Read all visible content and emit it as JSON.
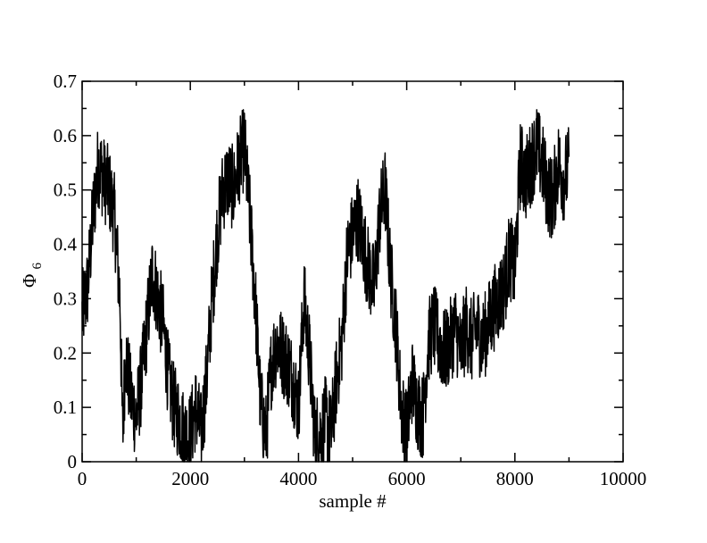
{
  "chart_data": {
    "type": "line",
    "title": "",
    "xlabel": "sample #",
    "ylabel": "Φ",
    "ylabel_subscript": "6",
    "xlim": [
      0,
      10000
    ],
    "ylim": [
      0,
      0.7
    ],
    "x_ticks": [
      0,
      2000,
      4000,
      6000,
      8000,
      10000
    ],
    "y_ticks": [
      0,
      0.1,
      0.2,
      0.3,
      0.4,
      0.5,
      0.6,
      0.7
    ],
    "grid": false,
    "line_color": "#000000",
    "series": [
      {
        "x": [
          0,
          100,
          200,
          300,
          400,
          500,
          600,
          700,
          750,
          800,
          900,
          1000,
          1100,
          1200,
          1300,
          1400,
          1500,
          1600,
          1700,
          1800,
          1900,
          2000,
          2100,
          2200,
          2300,
          2400,
          2500,
          2600,
          2700,
          2800,
          2900,
          3000,
          3100,
          3200,
          3300,
          3400,
          3500,
          3600,
          3700,
          3800,
          3900,
          4000,
          4100,
          4200,
          4300,
          4400,
          4500,
          4600,
          4700,
          4800,
          4900,
          5000,
          5100,
          5200,
          5300,
          5400,
          5500,
          5600,
          5700,
          5800,
          5900,
          6000,
          6100,
          6200,
          6300,
          6400,
          6500,
          6600,
          6700,
          6800,
          6900,
          7000,
          7100,
          7200,
          7300,
          7400,
          7500,
          7600,
          7700,
          7800,
          7900,
          8000,
          8100,
          8200,
          8300,
          8400,
          8500,
          8600,
          8700,
          8800,
          8900,
          9000
        ],
        "y": [
          0.27,
          0.32,
          0.45,
          0.55,
          0.52,
          0.5,
          0.45,
          0.3,
          0.05,
          0.2,
          0.12,
          0.08,
          0.15,
          0.25,
          0.35,
          0.3,
          0.25,
          0.15,
          0.1,
          0.08,
          0.05,
          0.05,
          0.1,
          0.05,
          0.15,
          0.3,
          0.42,
          0.5,
          0.52,
          0.5,
          0.55,
          0.58,
          0.45,
          0.3,
          0.1,
          0.05,
          0.18,
          0.22,
          0.2,
          0.18,
          0.15,
          0.1,
          0.3,
          0.2,
          0.05,
          0.05,
          0.08,
          0.05,
          0.15,
          0.22,
          0.38,
          0.42,
          0.45,
          0.4,
          0.35,
          0.32,
          0.45,
          0.5,
          0.35,
          0.25,
          0.1,
          0.05,
          0.15,
          0.1,
          0.08,
          0.22,
          0.25,
          0.22,
          0.2,
          0.22,
          0.25,
          0.2,
          0.25,
          0.22,
          0.25,
          0.22,
          0.25,
          0.28,
          0.3,
          0.32,
          0.38,
          0.35,
          0.55,
          0.52,
          0.55,
          0.58,
          0.55,
          0.5,
          0.48,
          0.55,
          0.52,
          0.54
        ]
      }
    ]
  }
}
